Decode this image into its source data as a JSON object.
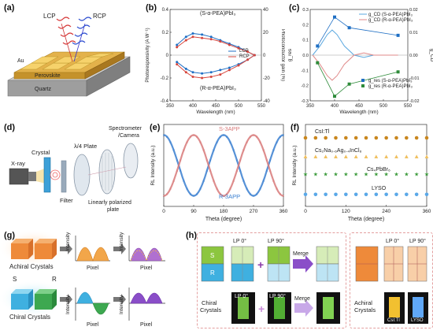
{
  "panels": {
    "a": {
      "label": "(a)",
      "lcp": "LCP",
      "rcp": "RCP",
      "au": "Au",
      "perovskite": "Perovskite",
      "quartz": "Quartz"
    },
    "b": {
      "label": "(b)",
      "top_title": "(S-α-PEA)PbI₃",
      "bottom_title": "(R-α-PEA)PbI₃",
      "legend_lcp": "LCP",
      "legend_rcp": "RCP"
    },
    "c": {
      "label": "(c)",
      "leg1": "g_CD (S-α-PEA)PbI₃",
      "leg2": "g_CD (R-α-PEA)PbI₃",
      "leg3": "g_res (S-α-PEA)PbI₃",
      "leg4": "g_res (R-α-PEA)PbI₃"
    },
    "d": {
      "label": "(d)",
      "xray": "X-ray",
      "crystal": "Crystal",
      "plate": "λ/4 Plate",
      "spectrometer": "Spectrometer",
      "camera": "/Camera",
      "filter": "Filter",
      "polarizer1": "Linearly polarized",
      "polarizer2": "plate"
    },
    "e": {
      "label": "(e)",
      "s_label": "S-3APP",
      "r_label": "R-3APP"
    },
    "f": {
      "label": "(f)",
      "s1": "CsI:Tl",
      "s2": "Cs₂Na₀.₆Ag₀.₄InCl₆",
      "s3": "Cs₄PbBr₆",
      "s4": "LYSO"
    },
    "g": {
      "label": "(g)",
      "achiral": "Achiral Crystals",
      "chiral": "Chiral Crystals",
      "s": "S",
      "r": "R",
      "intensity": "Intensity",
      "pixel": "Pixel"
    },
    "h": {
      "label": "(h)",
      "lp0": "LP 0°",
      "lp90": "LP 90°",
      "merge": "Merge",
      "s": "S",
      "r": "R",
      "chiral1": "Chiral",
      "chiral2": "Crystals",
      "achiral1": "Achiral",
      "achiral2": "Crystals",
      "csitl": "CsI:Tl",
      "lyso": "LYSO"
    }
  },
  "chart_data": [
    {
      "id": "b",
      "type": "line",
      "xlabel": "Wavelength (nm)",
      "ylabel": "Photoresponsivity (A W⁻¹)",
      "y2label": "Photoconductor gain (%)",
      "xlim": [
        350,
        550
      ],
      "ylim": [
        -0.4,
        0.4
      ],
      "y2lim": [
        -40,
        40
      ],
      "xticks": [
        350,
        400,
        450,
        500,
        550
      ],
      "yticks": [
        -0.4,
        -0.2,
        0,
        0.2,
        0.4
      ],
      "y2ticks": [
        -40,
        -20,
        0,
        20,
        40
      ],
      "x": [
        365,
        385,
        400,
        420,
        440,
        460,
        480,
        500,
        520,
        535
      ],
      "series": [
        {
          "name": "LCP",
          "color": "#1f6fc4",
          "values": [
            0.09,
            0.16,
            0.19,
            0.18,
            0.16,
            0.13,
            0.1,
            0.07,
            0.03,
            0.0
          ]
        },
        {
          "name": "RCP",
          "color": "#d6453c",
          "values": [
            0.07,
            0.13,
            0.16,
            0.15,
            0.14,
            0.12,
            0.09,
            0.06,
            0.03,
            0.0
          ]
        },
        {
          "name": "LCP",
          "color": "#1f6fc4",
          "values": [
            -0.06,
            -0.12,
            -0.15,
            -0.16,
            -0.15,
            -0.13,
            -0.11,
            -0.08,
            -0.04,
            0.0
          ]
        },
        {
          "name": "RCP",
          "color": "#d6453c",
          "values": [
            -0.08,
            -0.15,
            -0.19,
            -0.2,
            -0.19,
            -0.17,
            -0.13,
            -0.09,
            -0.04,
            0.0
          ]
        }
      ]
    },
    {
      "id": "c",
      "type": "line",
      "xlabel": "Wavelength (nm)",
      "ylabel": "g_res",
      "y2label": "g_CD",
      "xlim": [
        350,
        550
      ],
      "ylim": [
        -0.3,
        0.3
      ],
      "y2lim": [
        -0.02,
        0.02
      ],
      "xticks": [
        350,
        400,
        450,
        500,
        550
      ],
      "yticks": [
        -0.3,
        -0.2,
        -0.1,
        0.0,
        0.1,
        0.2,
        0.3
      ],
      "y2ticks": [
        -0.02,
        -0.01,
        0.0,
        0.01,
        0.02
      ],
      "markers": [
        {
          "name": "g_res (S-α-PEA)PbI₃",
          "color": "#1f6fc4",
          "x": [
            365,
            400,
            430,
            530
          ],
          "y": [
            0.06,
            0.25,
            0.18,
            0.13
          ]
        },
        {
          "name": "g_res (R-α-PEA)PbI₃",
          "color": "#2e8b3a",
          "x": [
            365,
            400,
            430,
            530
          ],
          "y": [
            -0.05,
            -0.27,
            -0.19,
            -0.11
          ]
        }
      ],
      "curves": [
        {
          "name": "g_CD (S-α-PEA)PbI₃",
          "color": "#5aa8e0",
          "x": [
            355,
            370,
            385,
            395,
            405,
            420,
            440,
            460,
            480,
            500,
            530
          ],
          "y": [
            0.0,
            0.004,
            0.009,
            0.011,
            0.009,
            0.004,
            0.0,
            -0.001,
            0.0,
            0.0,
            0.0
          ]
        },
        {
          "name": "g_CD (R-α-PEA)PbI₃",
          "color": "#e08a8a",
          "x": [
            355,
            370,
            385,
            395,
            405,
            420,
            440,
            460,
            480,
            500,
            530
          ],
          "y": [
            0.0,
            -0.004,
            -0.009,
            -0.011,
            -0.009,
            -0.004,
            0.0,
            0.001,
            0.0,
            0.0,
            0.0
          ]
        }
      ]
    },
    {
      "id": "e",
      "type": "line",
      "xlabel": "Theta (degree)",
      "ylabel": "RL Intensity (a.u.)",
      "xlim": [
        0,
        360
      ],
      "xticks": [
        0,
        90,
        180,
        270,
        360
      ],
      "series": [
        {
          "name": "S-3APP",
          "color": "#3a7fd0",
          "phase": 0
        },
        {
          "name": "R-3APP",
          "color": "#d87a7a",
          "phase": 90
        }
      ]
    },
    {
      "id": "f",
      "type": "scatter",
      "xlabel": "Theta (degree)",
      "ylabel": "RL Intensity (a.u.)",
      "xlim": [
        0,
        360
      ],
      "xticks": [
        0,
        120,
        240,
        360
      ],
      "series": [
        {
          "name": "CsI:Tl",
          "color": "#c9861e",
          "marker": "circle",
          "level": 0.88
        },
        {
          "name": "Cs₂Na₀.₆Ag₀.₄InCl₆",
          "color": "#f0c060",
          "marker": "triangle",
          "level": 0.62
        },
        {
          "name": "Cs₄PbBr₆",
          "color": "#3a9a3a",
          "marker": "star",
          "level": 0.38
        },
        {
          "name": "LYSO",
          "color": "#5aa8e8",
          "marker": "circle",
          "level": 0.1
        }
      ],
      "x": [
        0,
        30,
        60,
        90,
        120,
        150,
        180,
        210,
        240,
        270,
        300,
        330,
        360
      ]
    }
  ]
}
